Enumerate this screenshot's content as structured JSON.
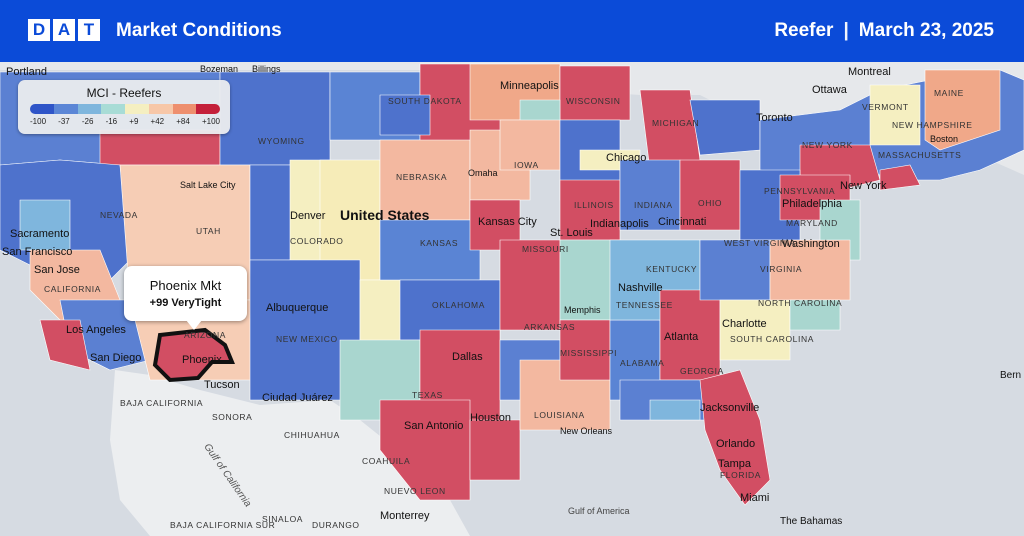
{
  "header": {
    "logo_letters": [
      "D",
      "A",
      "T"
    ],
    "title": "Market Conditions",
    "equipment": "Reefer",
    "separator": "|",
    "date": "March 23, 2025"
  },
  "legend": {
    "title": "MCI - Reefers",
    "ticks": [
      "-100",
      "-37",
      "-26",
      "-16",
      "+9",
      "+42",
      "+84",
      "+100"
    ],
    "colors": [
      "#2f55c8",
      "#5b86d6",
      "#7fb6dd",
      "#a8dcd6",
      "#f5efc1",
      "#f7c7a8",
      "#ee8f6e",
      "#c4203a"
    ]
  },
  "callout": {
    "market": "Phoenix Mkt",
    "value": "+99 VeryTight"
  },
  "map": {
    "country_label": "United States",
    "states": [
      "SOUTH DAKOTA",
      "WYOMING",
      "NEBRASKA",
      "IOWA",
      "ILLINOIS",
      "INDIANA",
      "OHIO",
      "NEVADA",
      "UTAH",
      "COLORADO",
      "KANSAS",
      "MISSOURI",
      "KENTUCKY",
      "WEST VIRGINIA",
      "VIRGINIA",
      "CALIFORNIA",
      "ARIZONA",
      "NEW MEXICO",
      "OKLAHOMA",
      "ARKANSAS",
      "TENNESSEE",
      "NORTH CAROLINA",
      "SOUTH CAROLINA",
      "MISSISSIPPI",
      "ALABAMA",
      "GEORGIA",
      "TEXAS",
      "LOUISIANA",
      "FLORIDA",
      "WISCONSIN",
      "MICHIGAN",
      "NEW YORK",
      "PENNSYLVANIA",
      "MARYLAND",
      "VERMONT",
      "NEW HAMPSHIRE",
      "MASSACHUSETTS",
      "MAINE",
      "BAJA CALIFORNIA",
      "SONORA",
      "CHIHUAHUA",
      "COAHUILA",
      "NUEVO LEON",
      "SINALOA",
      "DURANGO",
      "BAJA CALIFORNIA SUR"
    ],
    "cities": [
      "Portland",
      "Bozeman",
      "Billings",
      "Minneapolis",
      "Montreal",
      "Ottawa",
      "Toronto",
      "Chicago",
      "Omaha",
      "Salt Lake City",
      "Denver",
      "Kansas City",
      "St. Louis",
      "Indianapolis",
      "Cincinnati",
      "Sacramento",
      "San Francisco",
      "San Jose",
      "Los Angeles",
      "San Diego",
      "Phoenix",
      "Tucson",
      "Albuquerque",
      "Ciudad Juárez",
      "Dallas",
      "Houston",
      "San Antonio",
      "New Orleans",
      "Memphis",
      "Nashville",
      "Atlanta",
      "Charlotte",
      "Jacksonville",
      "Orlando",
      "Tampa",
      "Miami",
      "Philadelphia",
      "New York",
      "Washington",
      "Boston",
      "Monterrey"
    ],
    "other_labels": [
      "Gulf of California",
      "Gulf of America",
      "The Bahamas",
      "Bern"
    ]
  }
}
